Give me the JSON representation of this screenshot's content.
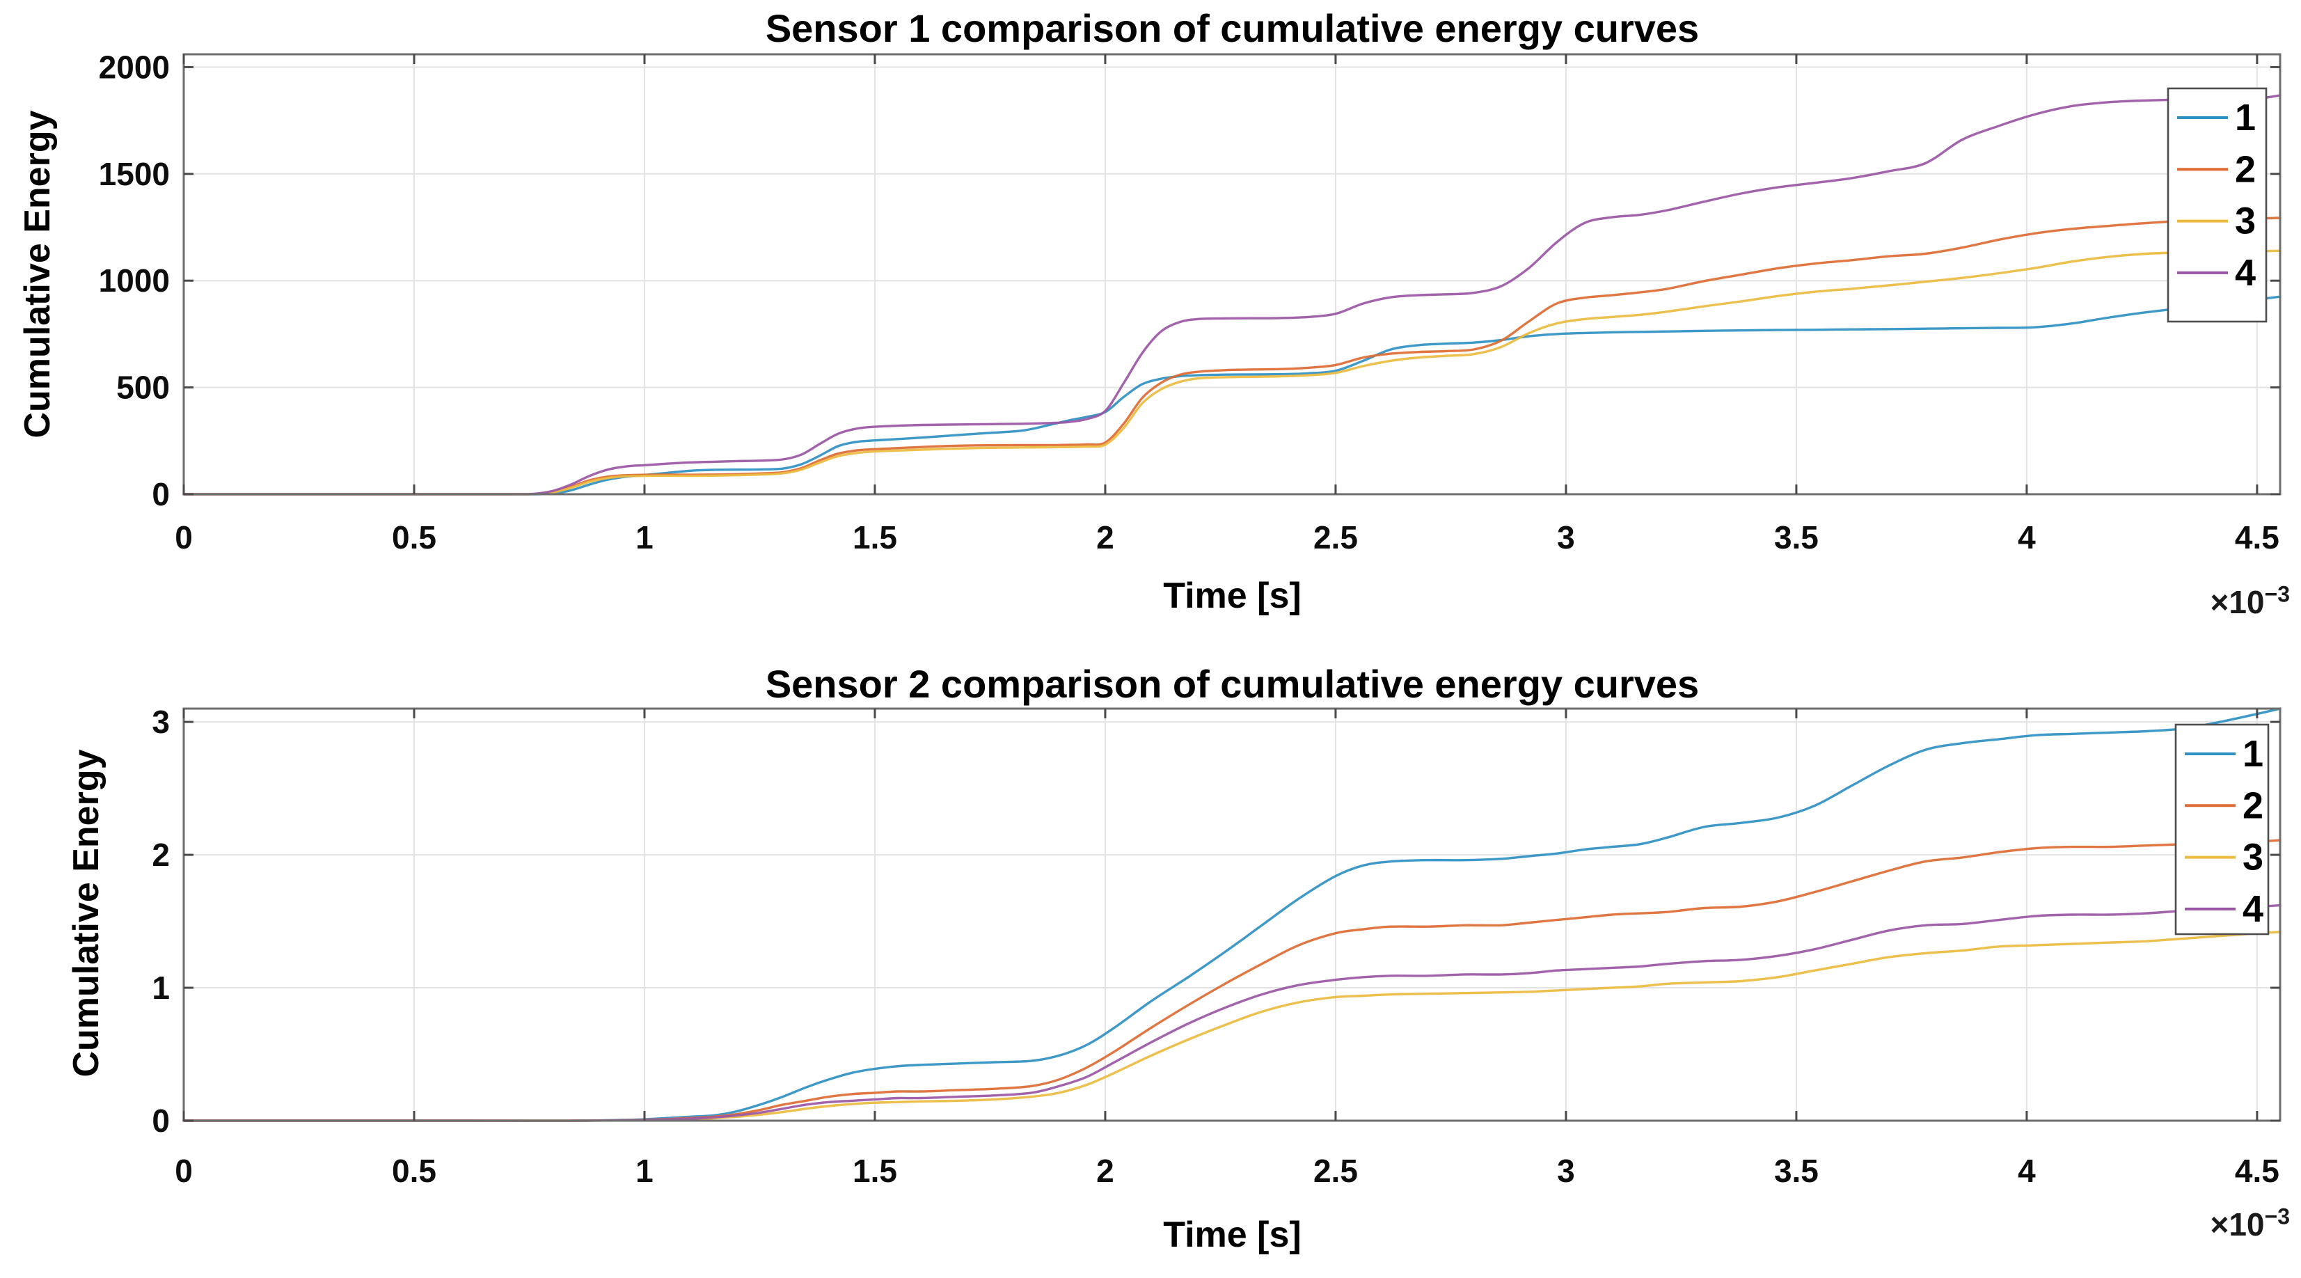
{
  "figure": {
    "background": "#ffffff",
    "text_color": "#000000"
  },
  "offset": {
    "base": "×10",
    "exp": "−3"
  },
  "chart_data": [
    {
      "type": "line",
      "title": "Sensor 1 comparison of cumulative energy curves",
      "xlabel": "Time [s]",
      "ylabel": "Cumulative Energy",
      "x_scale_annotation": "×10⁻³",
      "x_units_note": "x values are time in units of 1e-3 s",
      "xlim": [
        0,
        4.55
      ],
      "ylim": [
        0,
        2060
      ],
      "grid": true,
      "x_ticks": [
        0,
        0.5,
        1,
        1.5,
        2,
        2.5,
        3,
        3.5,
        4,
        4.5
      ],
      "x_tick_labels": [
        "0",
        "0.5",
        "1",
        "1.5",
        "2",
        "2.5",
        "3",
        "3.5",
        "4",
        "4.5"
      ],
      "y_ticks": [
        0,
        500,
        1000,
        1500,
        2000
      ],
      "y_tick_labels": [
        "0",
        "500",
        "1000",
        "1500",
        "2000"
      ],
      "legend": {
        "position": "top-right",
        "labels": [
          "1",
          "2",
          "3",
          "4"
        ]
      },
      "x": [
        0,
        0.4,
        0.7,
        0.76,
        0.8,
        0.84,
        0.88,
        0.92,
        0.96,
        1.0,
        1.05,
        1.1,
        1.15,
        1.2,
        1.25,
        1.3,
        1.34,
        1.38,
        1.42,
        1.46,
        1.5,
        1.58,
        1.66,
        1.74,
        1.82,
        1.88,
        1.92,
        1.96,
        2.0,
        2.04,
        2.08,
        2.12,
        2.16,
        2.2,
        2.26,
        2.32,
        2.38,
        2.44,
        2.5,
        2.56,
        2.62,
        2.68,
        2.74,
        2.8,
        2.86,
        2.92,
        2.98,
        3.04,
        3.1,
        3.16,
        3.22,
        3.3,
        3.38,
        3.46,
        3.54,
        3.62,
        3.7,
        3.78,
        3.86,
        3.94,
        4.02,
        4.1,
        4.18,
        4.26,
        4.34,
        4.42,
        4.5,
        4.55
      ],
      "series": [
        {
          "name": "1",
          "color": "#2e90c3",
          "values": [
            0,
            0,
            0,
            0,
            3,
            18,
            45,
            68,
            82,
            90,
            100,
            110,
            114,
            115,
            116,
            120,
            140,
            180,
            225,
            245,
            252,
            262,
            274,
            286,
            298,
            325,
            345,
            362,
            385,
            455,
            515,
            540,
            552,
            557,
            560,
            561,
            562,
            566,
            578,
            625,
            678,
            698,
            705,
            710,
            722,
            740,
            750,
            755,
            758,
            760,
            762,
            765,
            767,
            769,
            770,
            772,
            773,
            775,
            777,
            779,
            782,
            800,
            828,
            852,
            872,
            890,
            912,
            925
          ]
        },
        {
          "name": "2",
          "color": "#dd6b33",
          "values": [
            0,
            0,
            0,
            1,
            10,
            35,
            65,
            82,
            89,
            91,
            92,
            91,
            92,
            94,
            97,
            103,
            122,
            158,
            190,
            205,
            211,
            219,
            226,
            229,
            230,
            230,
            231,
            233,
            242,
            330,
            450,
            520,
            558,
            573,
            581,
            584,
            586,
            592,
            605,
            640,
            658,
            666,
            670,
            678,
            720,
            810,
            893,
            920,
            932,
            945,
            962,
            998,
            1028,
            1058,
            1080,
            1096,
            1114,
            1126,
            1155,
            1192,
            1222,
            1243,
            1257,
            1270,
            1280,
            1286,
            1291,
            1294
          ]
        },
        {
          "name": "3",
          "color": "#ecba3e",
          "values": [
            0,
            0,
            0,
            1,
            8,
            30,
            58,
            76,
            84,
            86,
            87,
            86,
            87,
            89,
            92,
            98,
            115,
            148,
            178,
            193,
            200,
            207,
            213,
            217,
            219,
            220,
            221,
            223,
            232,
            310,
            425,
            490,
            525,
            542,
            548,
            550,
            552,
            557,
            568,
            600,
            625,
            640,
            648,
            656,
            690,
            755,
            800,
            820,
            830,
            840,
            855,
            880,
            903,
            928,
            948,
            962,
            978,
            995,
            1013,
            1035,
            1060,
            1090,
            1112,
            1126,
            1132,
            1135,
            1138,
            1140
          ]
        },
        {
          "name": "4",
          "color": "#9a56a5",
          "values": [
            0,
            0,
            0,
            2,
            15,
            45,
            85,
            115,
            130,
            136,
            143,
            149,
            152,
            155,
            157,
            163,
            185,
            235,
            283,
            307,
            316,
            323,
            326,
            328,
            330,
            333,
            338,
            352,
            390,
            520,
            660,
            760,
            805,
            820,
            823,
            824,
            825,
            830,
            845,
            893,
            922,
            932,
            936,
            943,
            975,
            1060,
            1180,
            1270,
            1297,
            1308,
            1330,
            1370,
            1408,
            1437,
            1458,
            1480,
            1512,
            1550,
            1660,
            1725,
            1780,
            1818,
            1836,
            1844,
            1848,
            1850,
            1853,
            1868
          ]
        }
      ]
    },
    {
      "type": "line",
      "title": "Sensor 2 comparison of cumulative energy curves",
      "xlabel": "Time [s]",
      "ylabel": "Cumulative Energy",
      "x_scale_annotation": "×10⁻³",
      "x_units_note": "x values are time in units of 1e-3 s",
      "xlim": [
        0,
        4.55
      ],
      "ylim": [
        0,
        3.1
      ],
      "grid": true,
      "x_ticks": [
        0,
        0.5,
        1,
        1.5,
        2,
        2.5,
        3,
        3.5,
        4,
        4.5
      ],
      "x_tick_labels": [
        "0",
        "0.5",
        "1",
        "1.5",
        "2",
        "2.5",
        "3",
        "3.5",
        "4",
        "4.5"
      ],
      "y_ticks": [
        0,
        1,
        2,
        3
      ],
      "y_tick_labels": [
        "0",
        "1",
        "2",
        "3"
      ],
      "legend": {
        "position": "top-right",
        "labels": [
          "1",
          "2",
          "3",
          "4"
        ]
      },
      "x": [
        0,
        0.6,
        0.85,
        0.95,
        1.0,
        1.05,
        1.1,
        1.15,
        1.2,
        1.25,
        1.3,
        1.35,
        1.4,
        1.45,
        1.5,
        1.55,
        1.6,
        1.68,
        1.76,
        1.84,
        1.9,
        1.96,
        2.02,
        2.1,
        2.18,
        2.26,
        2.34,
        2.42,
        2.5,
        2.56,
        2.62,
        2.7,
        2.78,
        2.86,
        2.92,
        2.98,
        3.04,
        3.1,
        3.16,
        3.22,
        3.3,
        3.38,
        3.46,
        3.54,
        3.62,
        3.7,
        3.78,
        3.86,
        3.94,
        4.02,
        4.1,
        4.18,
        4.26,
        4.34,
        4.42,
        4.5,
        4.55
      ],
      "series": [
        {
          "name": "1",
          "color": "#2e90c3",
          "values": [
            0,
            0,
            0,
            0.005,
            0.01,
            0.02,
            0.03,
            0.04,
            0.07,
            0.12,
            0.18,
            0.25,
            0.31,
            0.36,
            0.39,
            0.41,
            0.42,
            0.43,
            0.44,
            0.45,
            0.49,
            0.57,
            0.7,
            0.9,
            1.08,
            1.27,
            1.47,
            1.67,
            1.84,
            1.92,
            1.95,
            1.96,
            1.96,
            1.97,
            1.99,
            2.01,
            2.04,
            2.06,
            2.08,
            2.13,
            2.21,
            2.24,
            2.28,
            2.37,
            2.52,
            2.67,
            2.79,
            2.84,
            2.87,
            2.9,
            2.91,
            2.92,
            2.93,
            2.95,
            3.0,
            3.06,
            3.1
          ]
        },
        {
          "name": "2",
          "color": "#dd6b33",
          "values": [
            0,
            0,
            0,
            0.003,
            0.007,
            0.012,
            0.02,
            0.03,
            0.05,
            0.08,
            0.12,
            0.15,
            0.18,
            0.2,
            0.21,
            0.22,
            0.22,
            0.23,
            0.24,
            0.26,
            0.31,
            0.4,
            0.52,
            0.7,
            0.87,
            1.03,
            1.18,
            1.32,
            1.41,
            1.44,
            1.46,
            1.46,
            1.47,
            1.47,
            1.49,
            1.51,
            1.53,
            1.55,
            1.56,
            1.57,
            1.6,
            1.61,
            1.65,
            1.72,
            1.8,
            1.88,
            1.95,
            1.98,
            2.02,
            2.05,
            2.06,
            2.06,
            2.07,
            2.08,
            2.09,
            2.1,
            2.11
          ]
        },
        {
          "name": "3",
          "color": "#ecba3e",
          "values": [
            0,
            0,
            0,
            0.001,
            0.003,
            0.007,
            0.01,
            0.018,
            0.03,
            0.045,
            0.065,
            0.09,
            0.11,
            0.125,
            0.135,
            0.14,
            0.145,
            0.15,
            0.16,
            0.18,
            0.21,
            0.27,
            0.36,
            0.49,
            0.61,
            0.72,
            0.82,
            0.89,
            0.93,
            0.94,
            0.95,
            0.955,
            0.96,
            0.965,
            0.97,
            0.98,
            0.99,
            1.0,
            1.01,
            1.03,
            1.04,
            1.05,
            1.08,
            1.13,
            1.18,
            1.23,
            1.26,
            1.28,
            1.31,
            1.32,
            1.33,
            1.34,
            1.35,
            1.37,
            1.39,
            1.41,
            1.42
          ]
        },
        {
          "name": "4",
          "color": "#9a56a5",
          "values": [
            0,
            0,
            0,
            0.002,
            0.005,
            0.01,
            0.015,
            0.025,
            0.04,
            0.06,
            0.09,
            0.12,
            0.14,
            0.15,
            0.16,
            0.17,
            0.17,
            0.18,
            0.19,
            0.21,
            0.26,
            0.33,
            0.44,
            0.59,
            0.73,
            0.85,
            0.95,
            1.02,
            1.06,
            1.08,
            1.09,
            1.09,
            1.1,
            1.1,
            1.11,
            1.13,
            1.14,
            1.15,
            1.16,
            1.18,
            1.2,
            1.21,
            1.24,
            1.29,
            1.36,
            1.43,
            1.47,
            1.48,
            1.51,
            1.54,
            1.55,
            1.55,
            1.56,
            1.58,
            1.6,
            1.61,
            1.62
          ]
        }
      ]
    }
  ]
}
